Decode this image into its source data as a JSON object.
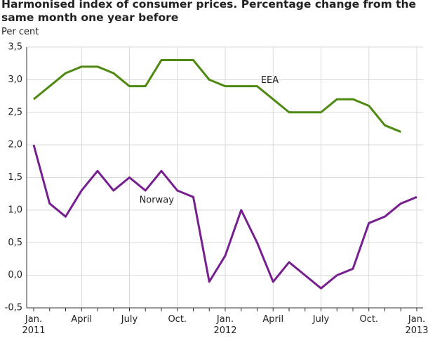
{
  "chart_data": {
    "type": "line",
    "title": "Harmonised index of consumer prices. Percentage change from the same month one year before",
    "y_axis_label": "Per cent",
    "categories": [
      "Jan.\n2011",
      null,
      null,
      "April",
      null,
      null,
      "July",
      null,
      null,
      "Oct.",
      null,
      null,
      "Jan.\n2012",
      null,
      null,
      "April",
      null,
      null,
      "July",
      null,
      null,
      "Oct.",
      null,
      null,
      "Jan.\n2013"
    ],
    "series": [
      {
        "name": "EEA",
        "color": "#4e8a12",
        "values": [
          2.7,
          2.9,
          3.1,
          3.2,
          3.2,
          3.1,
          2.9,
          2.9,
          3.3,
          3.3,
          3.3,
          3.0,
          2.9,
          2.9,
          2.9,
          2.7,
          2.5,
          2.5,
          2.5,
          2.7,
          2.7,
          2.6,
          2.3,
          2.2,
          null
        ]
      },
      {
        "name": "Norway",
        "color": "#761f8e",
        "values": [
          2.0,
          1.1,
          0.9,
          1.3,
          1.6,
          1.3,
          1.5,
          1.3,
          1.6,
          1.3,
          1.2,
          -0.1,
          0.3,
          1.0,
          0.5,
          -0.1,
          0.2,
          0.0,
          -0.2,
          0.0,
          0.1,
          0.8,
          0.9,
          1.1,
          1.2
        ]
      }
    ],
    "ylim": [
      -0.5,
      3.5
    ],
    "yticks": [
      {
        "value": -0.5,
        "label": "-0,5"
      },
      {
        "value": 0,
        "label": "0,0"
      },
      {
        "value": 0.5,
        "label": "0,5"
      },
      {
        "value": 1,
        "label": "1,0"
      },
      {
        "value": 1.5,
        "label": "1,5"
      },
      {
        "value": 2,
        "label": "2,0"
      },
      {
        "value": 2.5,
        "label": "2,5"
      },
      {
        "value": 3,
        "label": "3,0"
      },
      {
        "value": 3.5,
        "label": "3,5"
      }
    ],
    "grid": true
  }
}
